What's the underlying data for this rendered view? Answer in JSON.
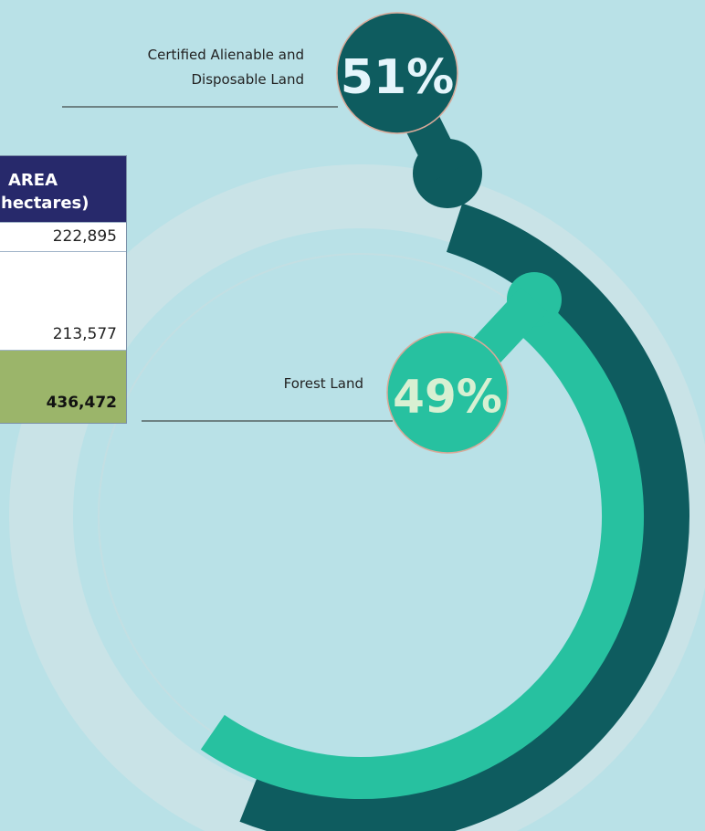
{
  "table": {
    "header": [
      "AREA",
      "hectares)"
    ],
    "rows": [
      "222,895",
      "213,577"
    ],
    "total": "436,472"
  },
  "chart_data": {
    "type": "radial",
    "categories": [
      [
        "Certified Alienable and",
        "Disposable Land"
      ],
      "Forest Land"
    ],
    "values": [
      51,
      49
    ],
    "value_labels": [
      "51%",
      "49%"
    ],
    "colors": [
      "#0e5c5f",
      "#27c1a0"
    ]
  }
}
